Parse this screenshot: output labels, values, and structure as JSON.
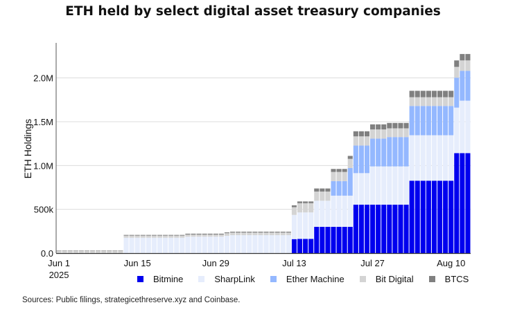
{
  "chart_data": {
    "type": "bar",
    "stacked": true,
    "title": "ETH held by select digital asset treasury companies",
    "xlabel": "",
    "ylabel": "ETH Holdings",
    "ylim": [
      0,
      2400000
    ],
    "grid": true,
    "legend_position": "bottom",
    "y_ticks": [
      {
        "value": 0,
        "label": "0.0"
      },
      {
        "value": 500000,
        "label": "500k"
      },
      {
        "value": 1000000,
        "label": "1.0M"
      },
      {
        "value": 1500000,
        "label": "1.5M"
      },
      {
        "value": 2000000,
        "label": "2.0M"
      }
    ],
    "x_ticks": [
      {
        "date": "2025-06-01",
        "label": "Jun 1",
        "sublabel": "2025"
      },
      {
        "date": "2025-06-15",
        "label": "Jun 15"
      },
      {
        "date": "2025-06-29",
        "label": "Jun 29"
      },
      {
        "date": "2025-07-13",
        "label": "Jul 13"
      },
      {
        "date": "2025-07-27",
        "label": "Jul 27"
      },
      {
        "date": "2025-08-10",
        "label": "Aug 10"
      }
    ],
    "dates": [
      "2025-06-01",
      "2025-06-02",
      "2025-06-03",
      "2025-06-04",
      "2025-06-05",
      "2025-06-06",
      "2025-06-07",
      "2025-06-08",
      "2025-06-09",
      "2025-06-10",
      "2025-06-11",
      "2025-06-12",
      "2025-06-13",
      "2025-06-14",
      "2025-06-15",
      "2025-06-16",
      "2025-06-17",
      "2025-06-18",
      "2025-06-19",
      "2025-06-20",
      "2025-06-21",
      "2025-06-22",
      "2025-06-23",
      "2025-06-24",
      "2025-06-25",
      "2025-06-26",
      "2025-06-27",
      "2025-06-28",
      "2025-06-29",
      "2025-06-30",
      "2025-07-01",
      "2025-07-02",
      "2025-07-03",
      "2025-07-04",
      "2025-07-05",
      "2025-07-06",
      "2025-07-07",
      "2025-07-08",
      "2025-07-09",
      "2025-07-10",
      "2025-07-11",
      "2025-07-12",
      "2025-07-13",
      "2025-07-14",
      "2025-07-15",
      "2025-07-16",
      "2025-07-17",
      "2025-07-18",
      "2025-07-19",
      "2025-07-20",
      "2025-07-21",
      "2025-07-22",
      "2025-07-23",
      "2025-07-24",
      "2025-07-25",
      "2025-07-26",
      "2025-07-27",
      "2025-07-28",
      "2025-07-29",
      "2025-07-30",
      "2025-07-31",
      "2025-08-01",
      "2025-08-02",
      "2025-08-03",
      "2025-08-04",
      "2025-08-05",
      "2025-08-06",
      "2025-08-07",
      "2025-08-08",
      "2025-08-09",
      "2025-08-10",
      "2025-08-11",
      "2025-08-12",
      "2025-08-13"
    ],
    "series": [
      {
        "name": "Bitmine",
        "color": "#0000ee",
        "values": [
          0,
          0,
          0,
          0,
          0,
          0,
          0,
          0,
          0,
          0,
          0,
          0,
          0,
          0,
          0,
          0,
          0,
          0,
          0,
          0,
          0,
          0,
          0,
          0,
          0,
          0,
          0,
          0,
          0,
          0,
          0,
          0,
          0,
          0,
          0,
          0,
          0,
          0,
          0,
          0,
          0,
          0,
          160000,
          163000,
          163000,
          163000,
          300000,
          300000,
          300000,
          300000,
          300000,
          300000,
          300000,
          554000,
          554000,
          554000,
          554000,
          554000,
          554000,
          554000,
          554000,
          554000,
          554000,
          827000,
          827000,
          827000,
          827000,
          827000,
          827000,
          827000,
          827000,
          1142000,
          1142000,
          1142000
        ]
      },
      {
        "name": "SharpLink",
        "color": "#e6edfc",
        "values": [
          0,
          0,
          0,
          0,
          0,
          0,
          0,
          0,
          0,
          0,
          0,
          0,
          176000,
          176000,
          176000,
          176000,
          176000,
          176000,
          176000,
          176000,
          176000,
          176000,
          176000,
          188000,
          188000,
          188000,
          188000,
          188000,
          188000,
          188000,
          198000,
          205000,
          205000,
          205000,
          205000,
          205000,
          205000,
          205000,
          205000,
          205000,
          205000,
          205000,
          276000,
          302000,
          302000,
          302000,
          298000,
          298000,
          298000,
          356000,
          356000,
          356000,
          356000,
          359000,
          359000,
          359000,
          436000,
          436000,
          436000,
          436000,
          436000,
          436000,
          436000,
          519000,
          519000,
          519000,
          519000,
          519000,
          519000,
          519000,
          519000,
          519000,
          598000,
          598000
        ]
      },
      {
        "name": "Ether Machine",
        "color": "#94b8ff",
        "values": [
          0,
          0,
          0,
          0,
          0,
          0,
          0,
          0,
          0,
          0,
          0,
          0,
          0,
          0,
          0,
          0,
          0,
          0,
          0,
          0,
          0,
          0,
          0,
          0,
          0,
          0,
          0,
          0,
          0,
          0,
          0,
          0,
          0,
          0,
          0,
          0,
          0,
          0,
          0,
          0,
          0,
          0,
          0,
          0,
          0,
          0,
          0,
          0,
          0,
          166000,
          166000,
          166000,
          315000,
          315000,
          315000,
          315000,
          317000,
          317000,
          317000,
          335000,
          335000,
          335000,
          335000,
          334000,
          334000,
          334000,
          334000,
          334000,
          334000,
          334000,
          334000,
          342000,
          341000,
          341000
        ]
      },
      {
        "name": "Bit Digital",
        "color": "#d4d4d4",
        "values": [
          24000,
          24000,
          24000,
          24000,
          24000,
          24000,
          24000,
          24000,
          24000,
          24000,
          24000,
          24000,
          24000,
          24000,
          24000,
          24000,
          24000,
          24000,
          24000,
          24000,
          24000,
          24000,
          24000,
          24000,
          24000,
          24000,
          24000,
          24000,
          24000,
          24000,
          30000,
          30000,
          30000,
          30000,
          30000,
          30000,
          30000,
          30000,
          30000,
          30000,
          30000,
          30000,
          89000,
          105000,
          105000,
          105000,
          105000,
          105000,
          105000,
          105000,
          105000,
          105000,
          105000,
          105000,
          105000,
          105000,
          105000,
          105000,
          105000,
          100000,
          100000,
          100000,
          100000,
          100000,
          100000,
          100000,
          100000,
          100000,
          100000,
          100000,
          100000,
          123000,
          119000,
          119000
        ]
      },
      {
        "name": "BTCS",
        "color": "#808080",
        "values": [
          5000,
          5000,
          5000,
          5000,
          5000,
          5000,
          5000,
          5000,
          5000,
          5000,
          5000,
          5000,
          8000,
          8000,
          8000,
          8000,
          8000,
          8000,
          8000,
          8000,
          8000,
          8000,
          8000,
          10000,
          10000,
          10000,
          10000,
          10000,
          10000,
          10000,
          9000,
          10000,
          10000,
          10000,
          10000,
          10000,
          10000,
          10000,
          10000,
          10000,
          10000,
          10000,
          21000,
          20000,
          20000,
          20000,
          35000,
          35000,
          35000,
          34000,
          34000,
          34000,
          34000,
          58000,
          58000,
          58000,
          58000,
          58000,
          58000,
          61000,
          61000,
          61000,
          61000,
          73000,
          73000,
          73000,
          73000,
          73000,
          73000,
          73000,
          73000,
          74000,
          73000,
          73000
        ]
      }
    ]
  },
  "footer": {
    "sources": "Sources: Public filings, strategicethreserve.xyz and Coinbase."
  }
}
